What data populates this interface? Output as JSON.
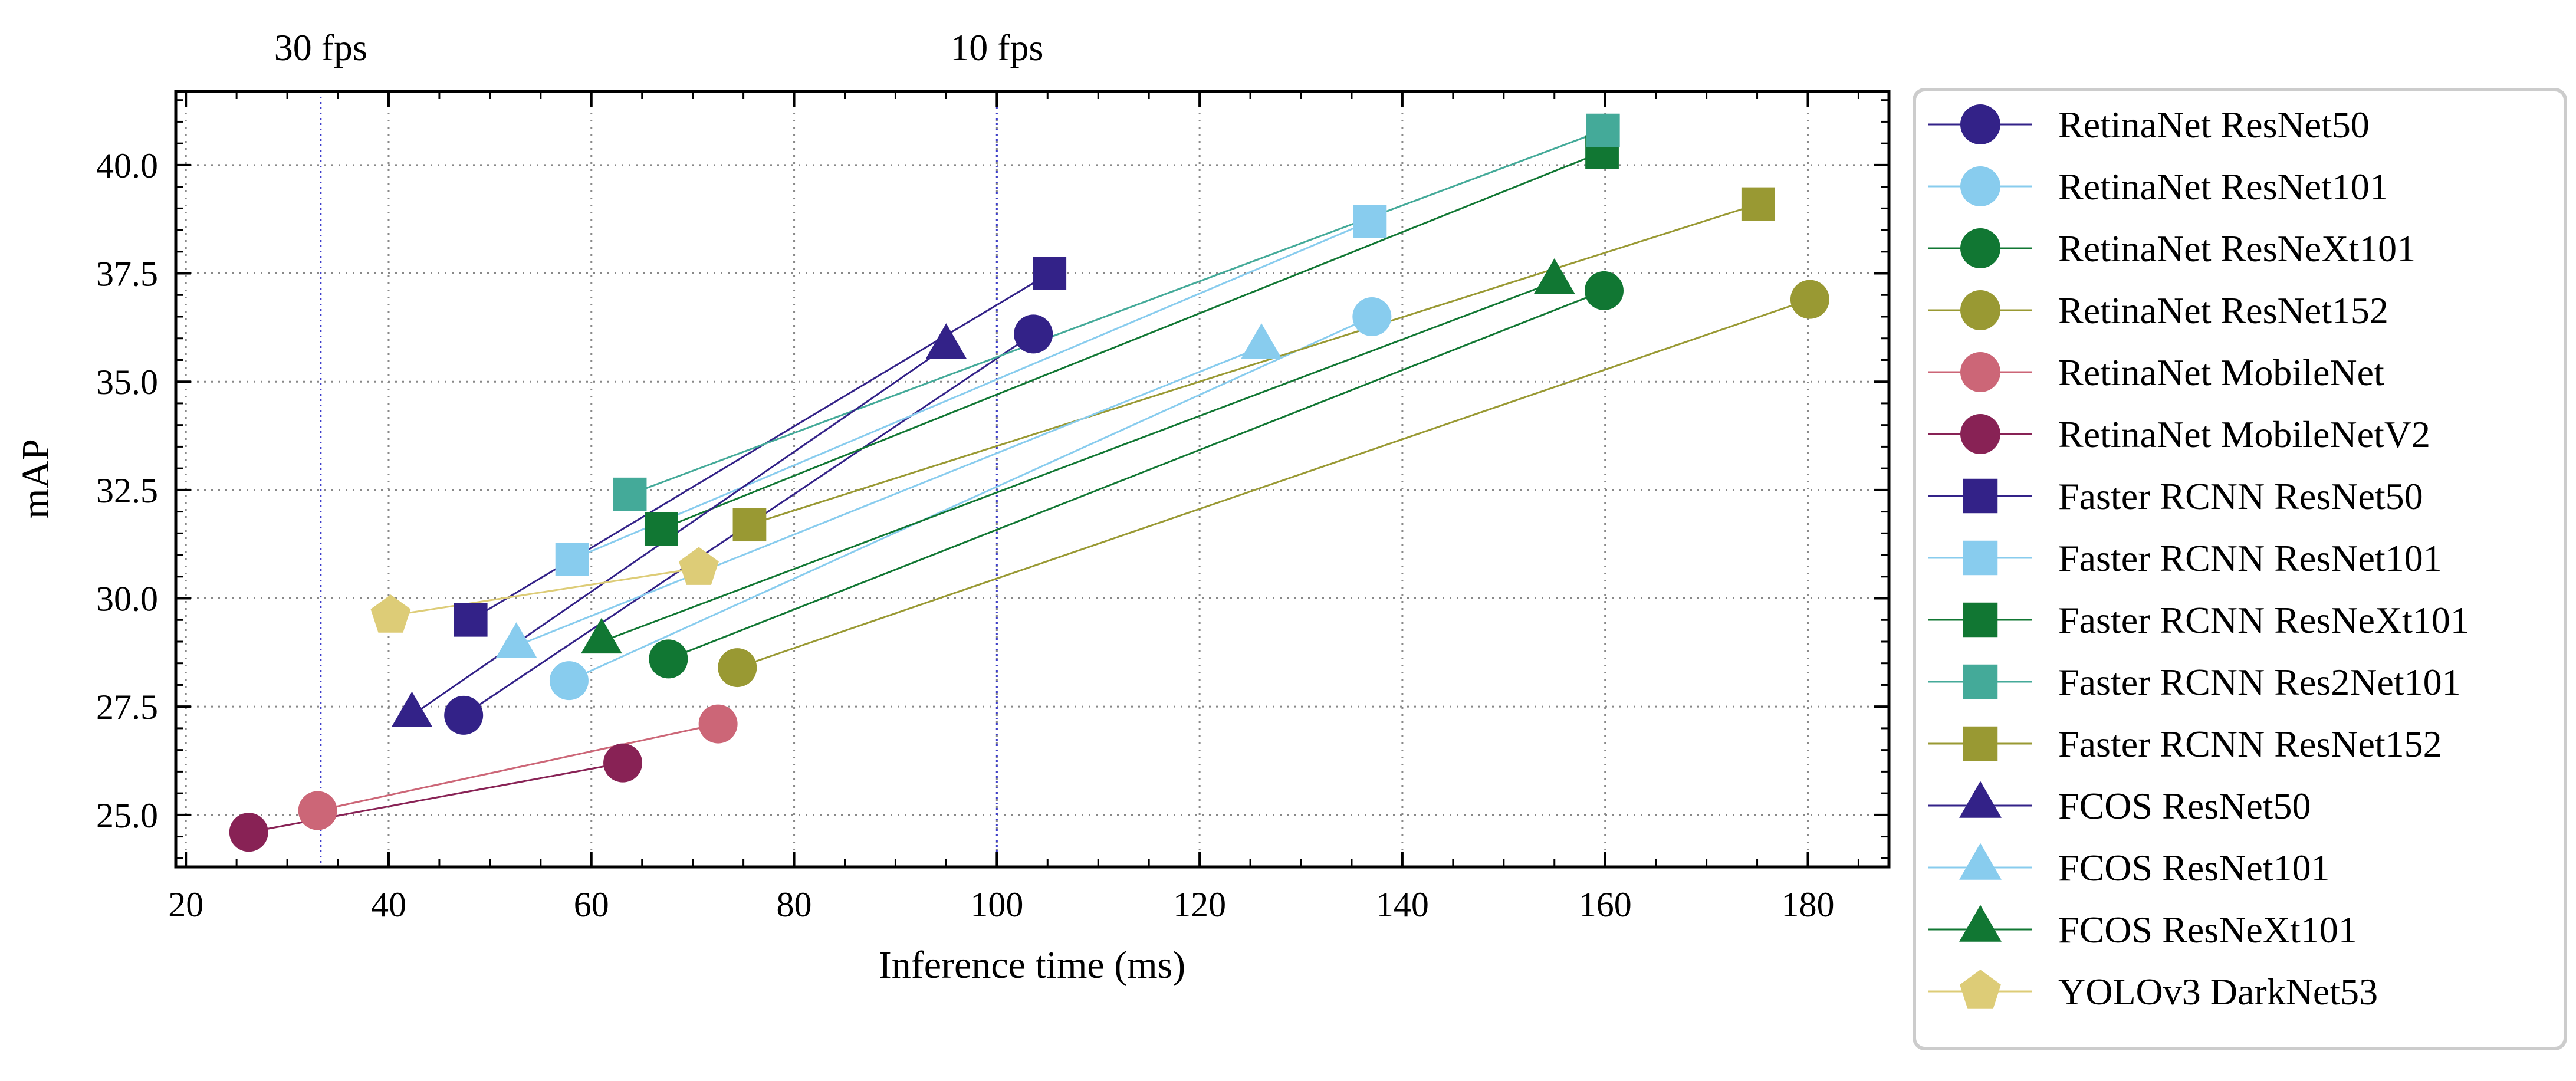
{
  "chart_data": {
    "type": "scatter",
    "title": "",
    "xlabel": "Inference time (ms)",
    "ylabel": "mAP",
    "xlim": [
      19,
      188
    ],
    "ylim": [
      23.8,
      41.7
    ],
    "xticks": [
      20,
      40,
      60,
      80,
      100,
      120,
      140,
      160,
      180
    ],
    "yticks": [
      25.0,
      27.5,
      30.0,
      32.5,
      35.0,
      37.5,
      40.0
    ],
    "xtick_labels": [
      "20",
      "40",
      "60",
      "80",
      "100",
      "120",
      "140",
      "160",
      "180"
    ],
    "ytick_labels": [
      "25.0",
      "27.5",
      "30.0",
      "32.5",
      "35.0",
      "37.5",
      "40.0"
    ],
    "grid": true,
    "legend_position": "right-outside",
    "fps_lines": [
      {
        "x": 33.3,
        "label": "30 fps"
      },
      {
        "x": 100,
        "label": "10 fps"
      }
    ],
    "series": [
      {
        "name": "RetinaNet ResNet50",
        "marker": "circle",
        "color": "#332288",
        "points": [
          {
            "x": 47.4,
            "y": 27.3
          },
          {
            "x": 103.6,
            "y": 36.1
          }
        ]
      },
      {
        "name": "RetinaNet ResNet101",
        "marker": "circle",
        "color": "#88CCEE",
        "points": [
          {
            "x": 57.8,
            "y": 28.1
          },
          {
            "x": 137.0,
            "y": 36.5
          }
        ]
      },
      {
        "name": "RetinaNet ResNeXt101",
        "marker": "circle",
        "color": "#117733",
        "points": [
          {
            "x": 67.6,
            "y": 28.6
          },
          {
            "x": 159.9,
            "y": 37.1
          }
        ]
      },
      {
        "name": "RetinaNet ResNet152",
        "marker": "circle",
        "color": "#999933",
        "points": [
          {
            "x": 74.4,
            "y": 28.4
          },
          {
            "x": 180.2,
            "y": 36.9
          }
        ]
      },
      {
        "name": "RetinaNet MobileNet",
        "marker": "circle",
        "color": "#CC6677",
        "points": [
          {
            "x": 33.0,
            "y": 25.1
          },
          {
            "x": 72.5,
            "y": 27.1
          }
        ]
      },
      {
        "name": "RetinaNet MobileNetV2",
        "marker": "circle",
        "color": "#882255",
        "points": [
          {
            "x": 26.2,
            "y": 24.6
          },
          {
            "x": 63.1,
            "y": 26.2
          }
        ]
      },
      {
        "name": "Faster RCNN ResNet50",
        "marker": "square",
        "color": "#332288",
        "points": [
          {
            "x": 48.1,
            "y": 29.5
          },
          {
            "x": 105.2,
            "y": 37.5
          }
        ]
      },
      {
        "name": "Faster RCNN ResNet101",
        "marker": "square",
        "color": "#88CCEE",
        "points": [
          {
            "x": 58.1,
            "y": 30.9
          },
          {
            "x": 136.8,
            "y": 38.7
          }
        ]
      },
      {
        "name": "Faster RCNN ResNeXt101",
        "marker": "square",
        "color": "#117733",
        "points": [
          {
            "x": 66.9,
            "y": 31.6
          },
          {
            "x": 159.7,
            "y": 40.3
          }
        ]
      },
      {
        "name": "Faster RCNN Res2Net101",
        "marker": "square",
        "color": "#44AA99",
        "points": [
          {
            "x": 63.8,
            "y": 32.4
          },
          {
            "x": 159.8,
            "y": 40.8
          }
        ]
      },
      {
        "name": "Faster RCNN ResNet152",
        "marker": "square",
        "color": "#999933",
        "points": [
          {
            "x": 75.6,
            "y": 31.7
          },
          {
            "x": 175.1,
            "y": 39.1
          }
        ]
      },
      {
        "name": "FCOS ResNet50",
        "marker": "triangle",
        "color": "#332288",
        "points": [
          {
            "x": 42.3,
            "y": 27.3
          },
          {
            "x": 95.0,
            "y": 35.8
          }
        ]
      },
      {
        "name": "FCOS ResNet101",
        "marker": "triangle",
        "color": "#88CCEE",
        "points": [
          {
            "x": 52.6,
            "y": 28.9
          },
          {
            "x": 126.1,
            "y": 35.8
          }
        ]
      },
      {
        "name": "FCOS ResNeXt101",
        "marker": "triangle",
        "color": "#117733",
        "points": [
          {
            "x": 61.0,
            "y": 29.0
          },
          {
            "x": 155.0,
            "y": 37.3
          }
        ]
      },
      {
        "name": "YOLOv3 DarkNet53",
        "marker": "pentagon",
        "color": "#DDCC77",
        "points": [
          {
            "x": 40.2,
            "y": 29.6
          },
          {
            "x": 70.6,
            "y": 30.7
          }
        ]
      }
    ]
  }
}
